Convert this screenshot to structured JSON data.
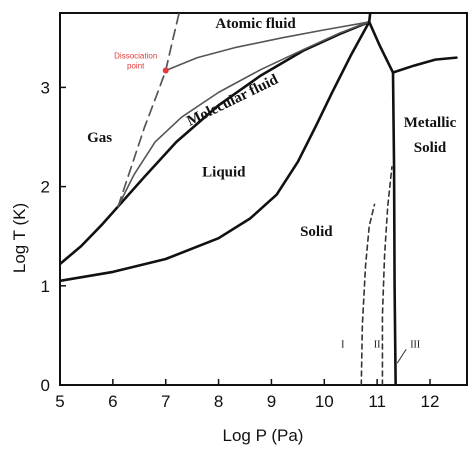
{
  "chart_data": {
    "type": "line",
    "title": "",
    "xlabel": "Log P (Pa)",
    "ylabel": "Log T (K)",
    "xlim": [
      5,
      12.7
    ],
    "ylim": [
      0,
      3.75
    ],
    "x_ticks": [
      "5",
      "6",
      "7",
      "8",
      "9",
      "10",
      "11",
      "12"
    ],
    "y_ticks": [
      "0",
      "1",
      "2",
      "3"
    ],
    "series": [
      {
        "key": "gas_liquid",
        "style": "solid-thick",
        "points": [
          [
            5,
            1.22
          ],
          [
            5.4,
            1.4
          ],
          [
            5.8,
            1.62
          ],
          [
            6.1,
            1.8
          ],
          [
            6.6,
            2.1
          ],
          [
            7.2,
            2.45
          ],
          [
            8.0,
            2.82
          ],
          [
            8.8,
            3.12
          ],
          [
            9.6,
            3.37
          ],
          [
            10.3,
            3.54
          ],
          [
            10.85,
            3.66
          ]
        ]
      },
      {
        "key": "solid_liquid",
        "style": "solid-thick",
        "points": [
          [
            5,
            1.05
          ],
          [
            6,
            1.14
          ],
          [
            7,
            1.27
          ],
          [
            8,
            1.48
          ],
          [
            8.6,
            1.68
          ],
          [
            9.1,
            1.92
          ],
          [
            9.5,
            2.25
          ],
          [
            9.85,
            2.62
          ],
          [
            10.15,
            2.95
          ],
          [
            10.5,
            3.32
          ],
          [
            10.85,
            3.66
          ]
        ]
      },
      {
        "key": "molecular_fluid_upper",
        "style": "solid-thin",
        "points": [
          [
            6.1,
            1.8
          ],
          [
            6.4,
            2.12
          ],
          [
            6.8,
            2.45
          ],
          [
            7.3,
            2.7
          ],
          [
            8.0,
            2.95
          ],
          [
            8.8,
            3.18
          ],
          [
            9.6,
            3.38
          ],
          [
            10.3,
            3.55
          ],
          [
            10.85,
            3.66
          ]
        ]
      },
      {
        "key": "atomic_molecular",
        "style": "solid-thin",
        "points": [
          [
            7.0,
            3.17
          ],
          [
            7.6,
            3.3
          ],
          [
            8.3,
            3.4
          ],
          [
            9.2,
            3.5
          ],
          [
            10.0,
            3.58
          ],
          [
            10.85,
            3.66
          ]
        ]
      },
      {
        "key": "dissociation",
        "style": "dashed",
        "points": [
          [
            6.1,
            1.8
          ],
          [
            6.35,
            2.2
          ],
          [
            6.6,
            2.6
          ],
          [
            6.85,
            2.95
          ],
          [
            7.0,
            3.17
          ],
          [
            7.12,
            3.45
          ],
          [
            7.32,
            3.9
          ]
        ]
      },
      {
        "key": "triple_up",
        "style": "solid-thick",
        "points": [
          [
            10.85,
            3.66
          ],
          [
            10.9,
            3.9
          ]
        ]
      },
      {
        "key": "metallic_top",
        "style": "solid-thick",
        "points": [
          [
            10.85,
            3.66
          ],
          [
            11.05,
            3.42
          ],
          [
            11.3,
            3.15
          ],
          [
            11.7,
            3.22
          ],
          [
            12.1,
            3.28
          ],
          [
            12.5,
            3.3
          ]
        ]
      },
      {
        "key": "metallic_boundary",
        "style": "solid-thick",
        "points": [
          [
            11.3,
            3.15
          ],
          [
            11.32,
            2.2
          ],
          [
            11.33,
            1.0
          ],
          [
            11.35,
            0
          ]
        ]
      },
      {
        "key": "phase_I_II",
        "style": "dashed-thin",
        "points": [
          [
            10.7,
            0
          ],
          [
            10.72,
            0.6
          ],
          [
            10.78,
            1.2
          ],
          [
            10.85,
            1.6
          ],
          [
            10.95,
            1.82
          ]
        ]
      },
      {
        "key": "phase_II_III",
        "style": "dashed-thin",
        "points": [
          [
            11.1,
            0
          ],
          [
            11.1,
            0.7
          ],
          [
            11.14,
            1.3
          ],
          [
            11.2,
            1.8
          ],
          [
            11.28,
            2.2
          ]
        ]
      }
    ],
    "annotations": [
      {
        "text": "Atomic fluid",
        "x": 8.7,
        "y": 3.6
      },
      {
        "text": "Molecular fluid",
        "x": 8.3,
        "y": 2.83,
        "rotate": -26
      },
      {
        "text": "Gas",
        "x": 5.75,
        "y": 2.45
      },
      {
        "text": "Liquid",
        "x": 8.1,
        "y": 2.1
      },
      {
        "text": "Solid",
        "x": 9.85,
        "y": 1.5
      },
      {
        "text": "Metallic",
        "x": 12.0,
        "y": 2.6
      },
      {
        "text": "Solid",
        "x": 12.0,
        "y": 2.35
      },
      {
        "text": "I",
        "x": 10.35,
        "y": 0.38
      },
      {
        "text": "II",
        "x": 11.0,
        "y": 0.38
      },
      {
        "text": "III",
        "x": 11.72,
        "y": 0.38
      }
    ],
    "point_annotation": {
      "label_line1": "Dissociation",
      "label_line2": "point",
      "x": 7.0,
      "y": 3.17,
      "color": "#e23b3b"
    },
    "grid": false,
    "legend": "none"
  }
}
